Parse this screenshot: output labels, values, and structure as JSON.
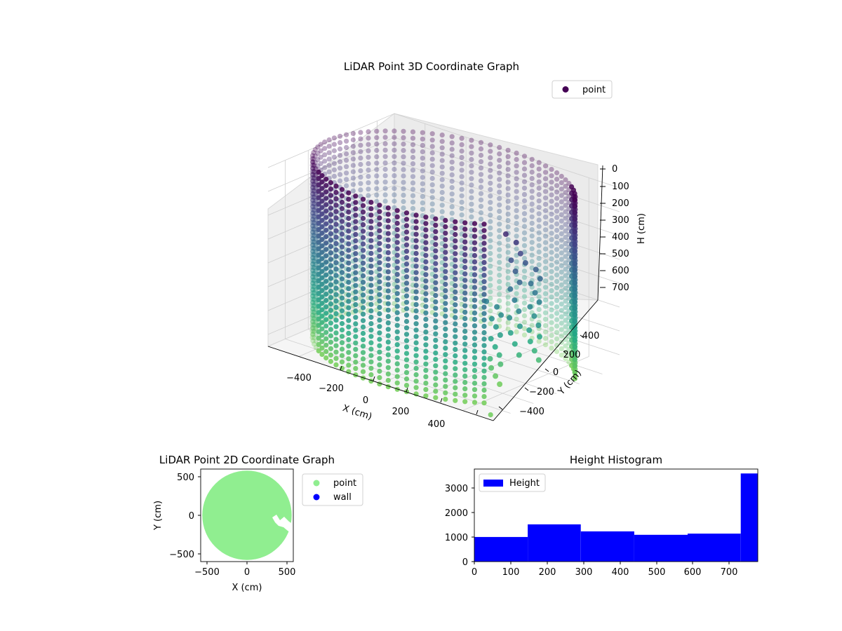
{
  "chart_data": [
    {
      "type": "scatter",
      "projection": "3d",
      "title": "LiDAR Point 3D Coordinate Graph",
      "xlabel": "X (cm)",
      "ylabel": "Y (cm)",
      "zlabel": "H (cm)",
      "x_ticks": [
        "−400",
        "−200",
        "0",
        "200",
        "400"
      ],
      "y_ticks": [
        "−400",
        "−200",
        "0",
        "200",
        "400"
      ],
      "z_ticks": [
        "0",
        "100",
        "200",
        "300",
        "400",
        "500",
        "600",
        "700"
      ],
      "xlim": [
        -550,
        550
      ],
      "ylim": [
        -550,
        550
      ],
      "zlim": [
        0,
        750
      ],
      "z_inverted": true,
      "grid": true,
      "colormap": "viridis",
      "legend": {
        "position": "top-right",
        "entries": [
          "point"
        ]
      },
      "series": [
        {
          "name": "point",
          "color": "#440154",
          "shape": "cylindrical wall of points",
          "radius": 560,
          "height_range": [
            0,
            750
          ],
          "opening_angle_range_deg": [
            -40,
            25
          ],
          "interior_cluster": [
            {
              "x": 380,
              "y": -60,
              "h_range": [
                120,
                620
              ]
            },
            {
              "x": 420,
              "y": 40,
              "h_range": [
                250,
                650
              ]
            },
            {
              "x": 330,
              "y": -140,
              "h_range": [
                400,
                740
              ]
            }
          ],
          "outlier": {
            "x": 520,
            "y": -520,
            "h": 740
          }
        }
      ]
    },
    {
      "type": "scatter",
      "title": "LiDAR Point 2D Coordinate Graph",
      "xlabel": "X (cm)",
      "ylabel": "Y (cm)",
      "x_ticks": [
        "−500",
        "0",
        "500"
      ],
      "y_ticks": [
        "500",
        "0",
        "−500"
      ],
      "xlim": [
        -580,
        580
      ],
      "ylim": [
        -580,
        580
      ],
      "legend": {
        "position": "outside-right",
        "entries": [
          "point",
          "wall"
        ]
      },
      "series": [
        {
          "name": "point",
          "color": "#90ee90",
          "shape": "filled disk",
          "center": [
            0,
            0
          ],
          "radius": 560
        },
        {
          "name": "wall",
          "color": "#0000ff"
        }
      ]
    },
    {
      "type": "bar",
      "subtype": "histogram",
      "title": "Height Histogram",
      "x_ticks": [
        "0",
        "100",
        "200",
        "300",
        "400",
        "500",
        "600",
        "700"
      ],
      "y_ticks": [
        "0",
        "1000",
        "2000",
        "3000"
      ],
      "xlim": [
        0,
        780
      ],
      "ylim": [
        0,
        3800
      ],
      "color": "#0000ff",
      "legend": {
        "position": "top-left",
        "entries": [
          "Height"
        ]
      },
      "bin_edges": [
        0,
        147,
        293,
        440,
        587,
        733,
        780
      ],
      "values": [
        1010,
        1530,
        1240,
        1100,
        1150,
        3620
      ]
    }
  ]
}
